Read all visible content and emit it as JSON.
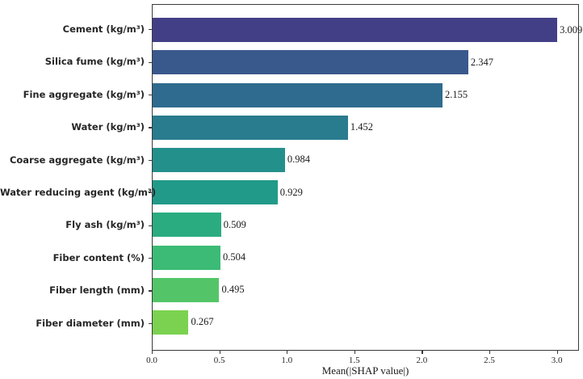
{
  "chart_data": {
    "type": "bar",
    "orientation": "horizontal",
    "title": "",
    "xlabel": "Mean(|SHAP value|)",
    "ylabel": "",
    "grid": false,
    "legend_position": "none",
    "categories": [
      "Cement (kg/m³)",
      "Silica fume (kg/m³)",
      "Fine aggregate (kg/m³)",
      "Water (kg/m³)",
      "Coarse aggregate (kg/m³)",
      "Water reducing agent (kg/m³)",
      "Fly ash (kg/m³)",
      "Fiber content (%)",
      "Fiber length (mm)",
      "Fiber diameter (mm)"
    ],
    "values": [
      3.009,
      2.347,
      2.155,
      1.452,
      0.984,
      0.929,
      0.509,
      0.504,
      0.495,
      0.267
    ],
    "value_labels": [
      "3.009",
      "2.347",
      "2.155",
      "1.452",
      "0.984",
      "0.929",
      "0.509",
      "0.504",
      "0.495",
      "0.267"
    ],
    "bar_colors": [
      "#433f87",
      "#39588c",
      "#2f6b8e",
      "#297b8e",
      "#23908c",
      "#219a89",
      "#2aac80",
      "#3bbb75",
      "#53c568",
      "#7bd250"
    ],
    "x_ticks": [
      "0.0",
      "0.5",
      "1.0",
      "1.5",
      "2.0",
      "2.5",
      "3.0"
    ],
    "x_tick_values": [
      0.0,
      0.5,
      1.0,
      1.5,
      2.0,
      2.5,
      3.0
    ],
    "xlim": [
      0,
      3.164
    ],
    "frame_color": "#3a3a3a",
    "background_color": "#ffffff"
  }
}
